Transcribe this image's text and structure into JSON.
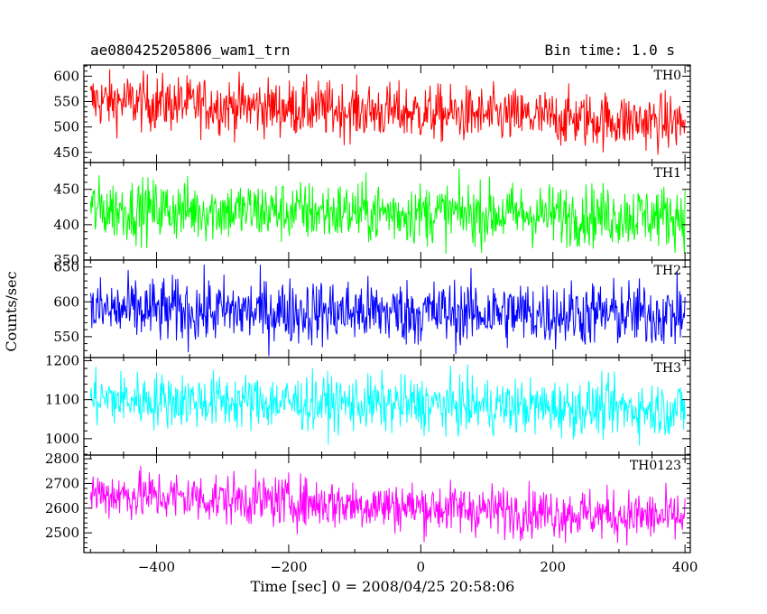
{
  "chart_data": {
    "type": "line",
    "title": "ae080425205806_wam1_trn",
    "subtitle": "Bin time: 1.0 s",
    "xlabel": "Time [sec] 0 = 2008/04/25 20:58:06",
    "ylabel": "Counts/sec",
    "xlim": [
      -510,
      408
    ],
    "x_ticks": [
      -400,
      -200,
      0,
      200,
      400
    ],
    "grid": false,
    "panels": [
      {
        "name": "TH0",
        "color": "#ff0000",
        "ylim": [
          430,
          622
        ],
        "y_ticks": [
          450,
          500,
          550,
          600
        ],
        "mean_start": 552,
        "mean_end": 508,
        "noise": 28
      },
      {
        "name": "TH1",
        "color": "#00ff00",
        "ylim": [
          350,
          488
        ],
        "y_ticks": [
          350,
          400,
          450
        ],
        "mean_start": 422,
        "mean_end": 412,
        "noise": 22
      },
      {
        "name": "TH2",
        "color": "#0000ff",
        "ylim": [
          520,
          660
        ],
        "y_ticks": [
          550,
          600,
          650
        ],
        "mean_start": 588,
        "mean_end": 582,
        "noise": 24
      },
      {
        "name": "TH3",
        "color": "#00ffff",
        "ylim": [
          958,
          1208
        ],
        "y_ticks": [
          1000,
          1100,
          1200
        ],
        "mean_start": 1102,
        "mean_end": 1075,
        "noise": 36
      },
      {
        "name": "TH0123",
        "color": "#ff00ff",
        "ylim": [
          2420,
          2815
        ],
        "y_ticks": [
          2500,
          2600,
          2700,
          2800
        ],
        "mean_start": 2660,
        "mean_end": 2560,
        "noise": 52
      }
    ]
  }
}
